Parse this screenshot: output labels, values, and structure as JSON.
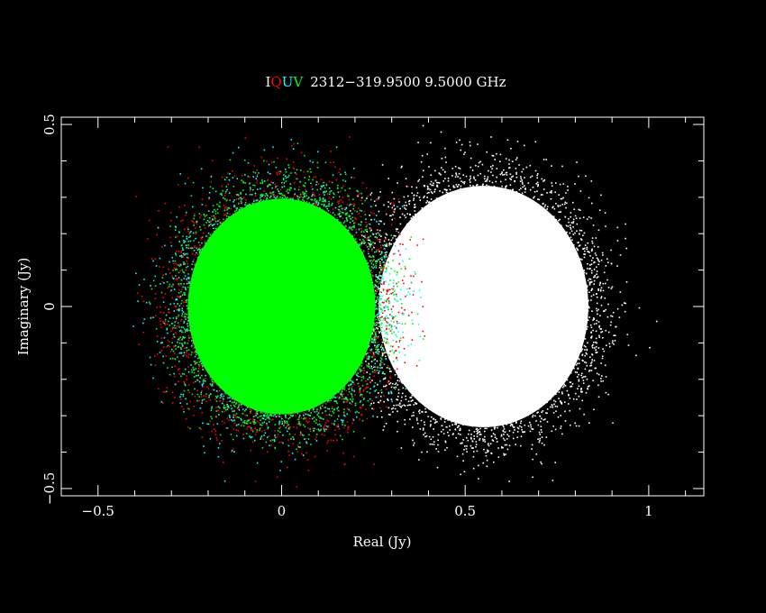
{
  "chart_data": {
    "type": "scatter",
    "title": {
      "stokes": [
        {
          "label": "I",
          "color": "#ffffff"
        },
        {
          "label": "Q",
          "color": "#ff0000"
        },
        {
          "label": "U",
          "color": "#00ffff"
        },
        {
          "label": "V",
          "color": "#00ff00"
        }
      ],
      "text": "2312−319.9500  9.5000  GHz"
    },
    "xlabel": "Real (Jy)",
    "ylabel": "Imaginary (Jy)",
    "xlim": [
      -0.6,
      1.15
    ],
    "ylim": [
      -0.52,
      0.52
    ],
    "x_ticks": [
      {
        "value": -0.5,
        "label": "−0.5"
      },
      {
        "value": 0,
        "label": "0"
      },
      {
        "value": 0.5,
        "label": "0.5"
      },
      {
        "value": 1,
        "label": "1"
      }
    ],
    "y_ticks": [
      {
        "value": -0.5,
        "label": "−0.5"
      },
      {
        "value": 0,
        "label": "0"
      },
      {
        "value": 0.5,
        "label": "0.5"
      }
    ],
    "grid": false,
    "series": [
      {
        "name": "I",
        "color": "#ffffff",
        "center": [
          0.55,
          0.0
        ],
        "spread_sigma": 0.1,
        "extent": 0.47
      },
      {
        "name": "Q",
        "color": "#ff0000",
        "center": [
          0.0,
          0.0
        ],
        "spread_sigma": 0.1,
        "extent": 0.47
      },
      {
        "name": "U",
        "color": "#00ffff",
        "center": [
          0.0,
          0.0
        ],
        "spread_sigma": 0.1,
        "extent": 0.45
      },
      {
        "name": "V",
        "color": "#00ff00",
        "center": [
          0.0,
          0.0
        ],
        "spread_sigma": 0.1,
        "extent": 0.42
      }
    ]
  }
}
